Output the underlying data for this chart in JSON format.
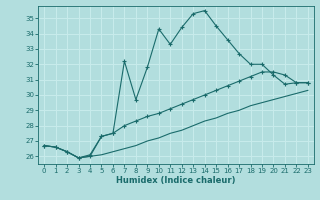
{
  "xlabel": "Humidex (Indice chaleur)",
  "ylabel": "",
  "xlim": [
    -0.5,
    23.5
  ],
  "ylim": [
    25.5,
    35.8
  ],
  "yticks": [
    26,
    27,
    28,
    29,
    30,
    31,
    32,
    33,
    34,
    35
  ],
  "xticks": [
    0,
    1,
    2,
    3,
    4,
    5,
    6,
    7,
    8,
    9,
    10,
    11,
    12,
    13,
    14,
    15,
    16,
    17,
    18,
    19,
    20,
    21,
    22,
    23
  ],
  "bg_color": "#b2dede",
  "line_color": "#1a6b6b",
  "grid_color": "#c8ecec",
  "line1_x": [
    0,
    1,
    2,
    3,
    4,
    5,
    6,
    7,
    8,
    9,
    10,
    11,
    12,
    13,
    14,
    15,
    16,
    17,
    18,
    19,
    20,
    21,
    22,
    23
  ],
  "line1_y": [
    26.7,
    26.6,
    26.3,
    25.9,
    26.0,
    27.3,
    27.5,
    32.2,
    29.7,
    31.8,
    34.3,
    33.3,
    34.4,
    35.3,
    35.5,
    34.5,
    33.6,
    32.7,
    32.0,
    32.0,
    31.3,
    30.7,
    30.8,
    30.8
  ],
  "line2_x": [
    0,
    1,
    2,
    3,
    4,
    5,
    6,
    7,
    8,
    9,
    10,
    11,
    12,
    13,
    14,
    15,
    16,
    17,
    18,
    19,
    20,
    21,
    22,
    23
  ],
  "line2_y": [
    26.7,
    26.6,
    26.3,
    25.9,
    26.1,
    27.3,
    27.5,
    28.0,
    28.3,
    28.6,
    28.8,
    29.1,
    29.4,
    29.7,
    30.0,
    30.3,
    30.6,
    30.9,
    31.2,
    31.5,
    31.5,
    31.3,
    30.8,
    30.8
  ],
  "line3_x": [
    0,
    1,
    2,
    3,
    4,
    5,
    6,
    7,
    8,
    9,
    10,
    11,
    12,
    13,
    14,
    15,
    16,
    17,
    18,
    19,
    20,
    21,
    22,
    23
  ],
  "line3_y": [
    26.7,
    26.6,
    26.3,
    25.9,
    26.0,
    26.1,
    26.3,
    26.5,
    26.7,
    27.0,
    27.2,
    27.5,
    27.7,
    28.0,
    28.3,
    28.5,
    28.8,
    29.0,
    29.3,
    29.5,
    29.7,
    29.9,
    30.1,
    30.3
  ],
  "marker": "+"
}
